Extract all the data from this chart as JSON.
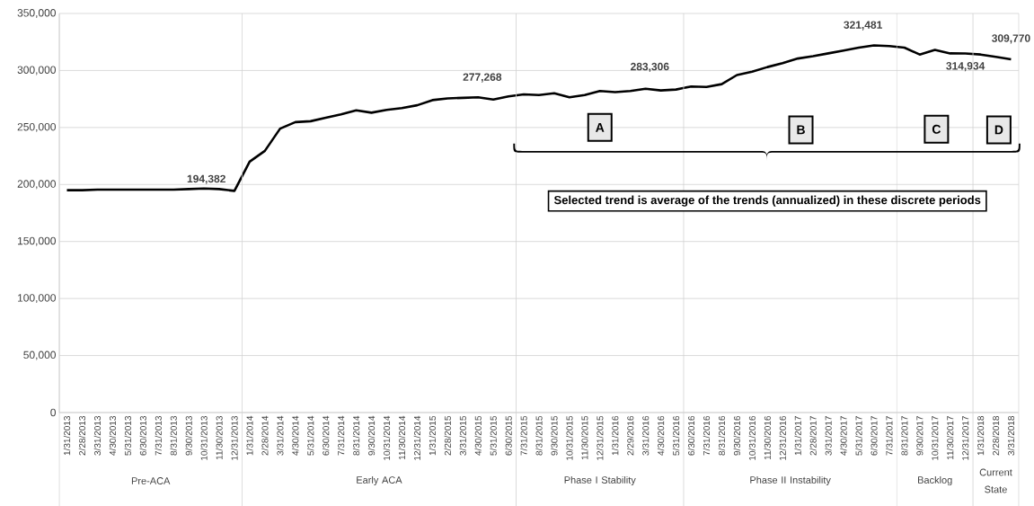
{
  "chart_data": {
    "type": "line",
    "color": "#000000",
    "categories": [
      "1/31/2013",
      "2/28/2013",
      "3/31/2013",
      "4/30/2013",
      "5/31/2013",
      "6/30/2013",
      "7/31/2013",
      "8/31/2013",
      "9/30/2013",
      "10/31/2013",
      "11/30/2013",
      "12/31/2013",
      "1/31/2014",
      "2/28/2014",
      "3/31/2014",
      "4/30/2014",
      "5/31/2014",
      "6/30/2014",
      "7/31/2014",
      "8/31/2014",
      "9/30/2014",
      "10/31/2014",
      "11/30/2014",
      "12/31/2014",
      "1/31/2015",
      "2/28/2015",
      "3/31/2015",
      "4/30/2015",
      "5/31/2015",
      "6/30/2015",
      "7/31/2015",
      "8/31/2015",
      "9/30/2015",
      "10/31/2015",
      "11/30/2015",
      "12/31/2015",
      "1/31/2016",
      "2/29/2016",
      "3/31/2016",
      "4/30/2016",
      "5/31/2016",
      "6/30/2016",
      "7/31/2016",
      "8/31/2016",
      "9/30/2016",
      "10/31/2016",
      "11/30/2016",
      "12/31/2016",
      "1/31/2017",
      "2/28/2017",
      "3/31/2017",
      "4/30/2017",
      "5/31/2017",
      "6/30/2017",
      "7/31/2017",
      "8/31/2017",
      "9/30/2017",
      "10/31/2017",
      "11/30/2017",
      "12/31/2017",
      "1/31/2018",
      "2/28/2018",
      "3/31/2018"
    ],
    "values": [
      195000,
      195000,
      195500,
      195500,
      195500,
      195500,
      195500,
      195500,
      196000,
      196500,
      196000,
      194382,
      220000,
      229500,
      249000,
      254700,
      255500,
      258500,
      261500,
      265000,
      263000,
      265500,
      267000,
      269500,
      274000,
      275500,
      276000,
      276500,
      274500,
      277268,
      279000,
      278500,
      280000,
      276500,
      278500,
      282000,
      281000,
      282000,
      284000,
      282500,
      283306,
      286000,
      285500,
      288000,
      296000,
      299000,
      303000,
      306500,
      310500,
      312500,
      315000,
      317500,
      320000,
      322000,
      321481,
      320000,
      314000,
      318000,
      315000,
      314934,
      314000,
      312000,
      309770
    ],
    "value_labels": [
      null,
      null,
      null,
      null,
      null,
      null,
      null,
      null,
      null,
      null,
      null,
      "194,382",
      null,
      null,
      null,
      null,
      null,
      null,
      null,
      null,
      null,
      null,
      null,
      null,
      null,
      null,
      null,
      null,
      null,
      "277,268",
      null,
      null,
      null,
      null,
      null,
      null,
      null,
      null,
      null,
      null,
      "283,306",
      null,
      null,
      null,
      null,
      null,
      null,
      null,
      null,
      null,
      null,
      null,
      null,
      null,
      "321,481",
      null,
      null,
      null,
      null,
      "314,934",
      null,
      null,
      "309,770"
    ],
    "ylim": [
      0,
      350000
    ],
    "yticks": [
      0,
      {
        "value": 50000,
        "label": "50,000"
      },
      {
        "value": 100000,
        "label": "100,000"
      },
      {
        "value": 150000,
        "label": "150,000"
      },
      {
        "value": 200000,
        "label": "200,000"
      },
      {
        "value": 250000,
        "label": "250,000"
      },
      {
        "value": 300000,
        "label": "300,000"
      },
      {
        "value": 350000,
        "label": "350,000"
      }
    ],
    "grid": "y",
    "annotations": [
      "A",
      "B",
      "C",
      "D",
      "Selected trend is average of the trends (annualized) in these discrete periods",
      "Pre-ACA",
      "Early ACA",
      "Phase I Stability",
      "Phase II Instability",
      "Backlog",
      "Current State"
    ]
  }
}
